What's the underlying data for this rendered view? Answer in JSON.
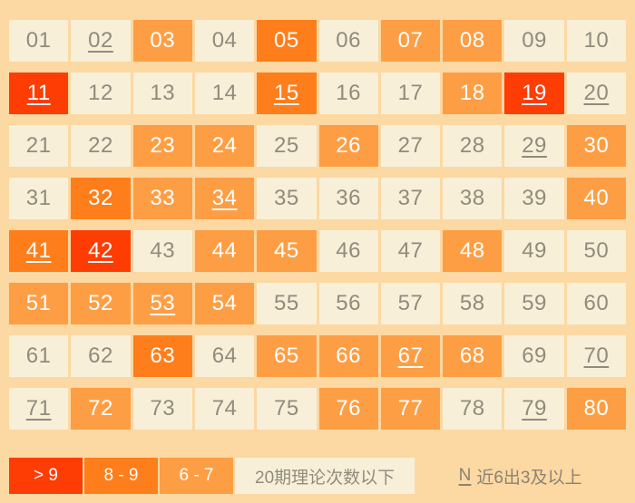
{
  "colors": {
    "page_bg": "#fcd8a2",
    "cell_bg": "#f8efd8",
    "tier_red": "#fe3d05",
    "tier_dark_orange": "#fe7e1b",
    "tier_orange": "#fe9e44",
    "cell_text": "#908b7d",
    "cell_text_light": "#ffffff"
  },
  "grid": {
    "columns": 10,
    "cells": [
      {
        "num": "01",
        "tier": "none",
        "underlined": false
      },
      {
        "num": "02",
        "tier": "none",
        "underlined": true
      },
      {
        "num": "03",
        "tier": "orange",
        "underlined": false
      },
      {
        "num": "04",
        "tier": "none",
        "underlined": false
      },
      {
        "num": "05",
        "tier": "dark_orange",
        "underlined": false
      },
      {
        "num": "06",
        "tier": "none",
        "underlined": false
      },
      {
        "num": "07",
        "tier": "orange",
        "underlined": false
      },
      {
        "num": "08",
        "tier": "orange",
        "underlined": false
      },
      {
        "num": "09",
        "tier": "none",
        "underlined": false
      },
      {
        "num": "10",
        "tier": "none",
        "underlined": false
      },
      {
        "num": "11",
        "tier": "red",
        "underlined": true
      },
      {
        "num": "12",
        "tier": "none",
        "underlined": false
      },
      {
        "num": "13",
        "tier": "none",
        "underlined": false
      },
      {
        "num": "14",
        "tier": "none",
        "underlined": false
      },
      {
        "num": "15",
        "tier": "dark_orange",
        "underlined": true
      },
      {
        "num": "16",
        "tier": "none",
        "underlined": false
      },
      {
        "num": "17",
        "tier": "none",
        "underlined": false
      },
      {
        "num": "18",
        "tier": "orange",
        "underlined": false
      },
      {
        "num": "19",
        "tier": "red",
        "underlined": true
      },
      {
        "num": "20",
        "tier": "none",
        "underlined": true
      },
      {
        "num": "21",
        "tier": "none",
        "underlined": false
      },
      {
        "num": "22",
        "tier": "none",
        "underlined": false
      },
      {
        "num": "23",
        "tier": "orange",
        "underlined": false
      },
      {
        "num": "24",
        "tier": "orange",
        "underlined": false
      },
      {
        "num": "25",
        "tier": "none",
        "underlined": false
      },
      {
        "num": "26",
        "tier": "orange",
        "underlined": false
      },
      {
        "num": "27",
        "tier": "none",
        "underlined": false
      },
      {
        "num": "28",
        "tier": "none",
        "underlined": false
      },
      {
        "num": "29",
        "tier": "none",
        "underlined": true
      },
      {
        "num": "30",
        "tier": "orange",
        "underlined": false
      },
      {
        "num": "31",
        "tier": "none",
        "underlined": false
      },
      {
        "num": "32",
        "tier": "dark_orange",
        "underlined": false
      },
      {
        "num": "33",
        "tier": "orange",
        "underlined": false
      },
      {
        "num": "34",
        "tier": "orange",
        "underlined": true
      },
      {
        "num": "35",
        "tier": "none",
        "underlined": false
      },
      {
        "num": "36",
        "tier": "none",
        "underlined": false
      },
      {
        "num": "37",
        "tier": "none",
        "underlined": false
      },
      {
        "num": "38",
        "tier": "none",
        "underlined": false
      },
      {
        "num": "39",
        "tier": "none",
        "underlined": false
      },
      {
        "num": "40",
        "tier": "orange",
        "underlined": false
      },
      {
        "num": "41",
        "tier": "dark_orange",
        "underlined": true
      },
      {
        "num": "42",
        "tier": "red",
        "underlined": true
      },
      {
        "num": "43",
        "tier": "none",
        "underlined": false
      },
      {
        "num": "44",
        "tier": "orange",
        "underlined": false
      },
      {
        "num": "45",
        "tier": "orange",
        "underlined": false
      },
      {
        "num": "46",
        "tier": "none",
        "underlined": false
      },
      {
        "num": "47",
        "tier": "none",
        "underlined": false
      },
      {
        "num": "48",
        "tier": "orange",
        "underlined": false
      },
      {
        "num": "49",
        "tier": "none",
        "underlined": false
      },
      {
        "num": "50",
        "tier": "none",
        "underlined": false
      },
      {
        "num": "51",
        "tier": "orange",
        "underlined": false
      },
      {
        "num": "52",
        "tier": "orange",
        "underlined": false
      },
      {
        "num": "53",
        "tier": "orange",
        "underlined": true
      },
      {
        "num": "54",
        "tier": "orange",
        "underlined": false
      },
      {
        "num": "55",
        "tier": "none",
        "underlined": false
      },
      {
        "num": "56",
        "tier": "none",
        "underlined": false
      },
      {
        "num": "57",
        "tier": "none",
        "underlined": false
      },
      {
        "num": "58",
        "tier": "none",
        "underlined": false
      },
      {
        "num": "59",
        "tier": "none",
        "underlined": false
      },
      {
        "num": "60",
        "tier": "none",
        "underlined": false
      },
      {
        "num": "61",
        "tier": "none",
        "underlined": false
      },
      {
        "num": "62",
        "tier": "none",
        "underlined": false
      },
      {
        "num": "63",
        "tier": "dark_orange",
        "underlined": false
      },
      {
        "num": "64",
        "tier": "none",
        "underlined": false
      },
      {
        "num": "65",
        "tier": "orange",
        "underlined": false
      },
      {
        "num": "66",
        "tier": "orange",
        "underlined": false
      },
      {
        "num": "67",
        "tier": "orange",
        "underlined": true
      },
      {
        "num": "68",
        "tier": "orange",
        "underlined": false
      },
      {
        "num": "69",
        "tier": "none",
        "underlined": false
      },
      {
        "num": "70",
        "tier": "none",
        "underlined": true
      },
      {
        "num": "71",
        "tier": "none",
        "underlined": true
      },
      {
        "num": "72",
        "tier": "orange",
        "underlined": false
      },
      {
        "num": "73",
        "tier": "none",
        "underlined": false
      },
      {
        "num": "74",
        "tier": "none",
        "underlined": false
      },
      {
        "num": "75",
        "tier": "none",
        "underlined": false
      },
      {
        "num": "76",
        "tier": "orange",
        "underlined": false
      },
      {
        "num": "77",
        "tier": "orange",
        "underlined": false
      },
      {
        "num": "78",
        "tier": "none",
        "underlined": false
      },
      {
        "num": "79",
        "tier": "none",
        "underlined": true
      },
      {
        "num": "80",
        "tier": "orange",
        "underlined": false
      }
    ]
  },
  "legend": {
    "items": [
      {
        "label": "> 9",
        "tier": "red"
      },
      {
        "label": "8 - 9",
        "tier": "dark_orange"
      },
      {
        "label": "6 - 7",
        "tier": "orange"
      },
      {
        "label": "20期理论次数以下",
        "tier": "none"
      }
    ],
    "note_prefix": "N",
    "note_text": "近6出3及以上"
  }
}
